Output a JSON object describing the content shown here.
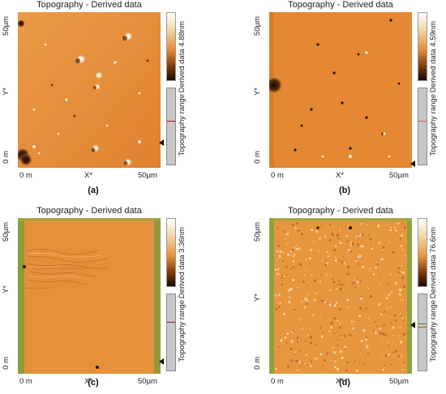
{
  "panels": [
    {
      "title": "Topography - Derived data",
      "y_top": "50µm",
      "y_mid": "Y*",
      "y_bottom": "0 m",
      "x_left": "0 m",
      "x_mid": "X*",
      "x_right": "50µm",
      "colorbar_label": "Derived data 4.88nm",
      "range_label": "Topography range",
      "caption": "(a)",
      "colors": {
        "base": "#e58a35",
        "edge": "#f3cf98",
        "dark": "#2a1404"
      }
    },
    {
      "title": "Topography - Derived data",
      "y_top": "50µm",
      "y_mid": "Y*",
      "y_bottom": "0 m",
      "x_left": "0 m",
      "x_mid": "X*",
      "x_right": "50µm",
      "colorbar_label": "Derived data 4.59nm",
      "range_label": "Topography range",
      "caption": "(b)",
      "colors": {
        "base": "#e58a35",
        "edge": "#f3cf98",
        "dark": "#2a1404"
      }
    },
    {
      "title": "Topography - Derived data",
      "y_top": "50µm",
      "y_mid": "Y*",
      "y_bottom": "0 m",
      "x_left": "0 m",
      "x_mid": "X*",
      "x_right": "50µm",
      "colorbar_label": "Derived data 3.36nm",
      "range_label": "Topography range",
      "caption": "(c)",
      "colors": {
        "base": "#e7913a",
        "edge": "#8c9a3a",
        "dark": "#2a1404"
      }
    },
    {
      "title": "Topography - Derived data",
      "y_top": "50µm",
      "y_mid": "Y*",
      "y_bottom": "0 m",
      "x_left": "0 m",
      "x_mid": "X*",
      "x_right": "50µm",
      "colorbar_label": "Derived data 76.6nm",
      "range_label": "Topography range",
      "caption": "(d)",
      "colors": {
        "base": "#e8963e",
        "edge": "#8ba33d",
        "dark": "#2a1404"
      }
    }
  ]
}
